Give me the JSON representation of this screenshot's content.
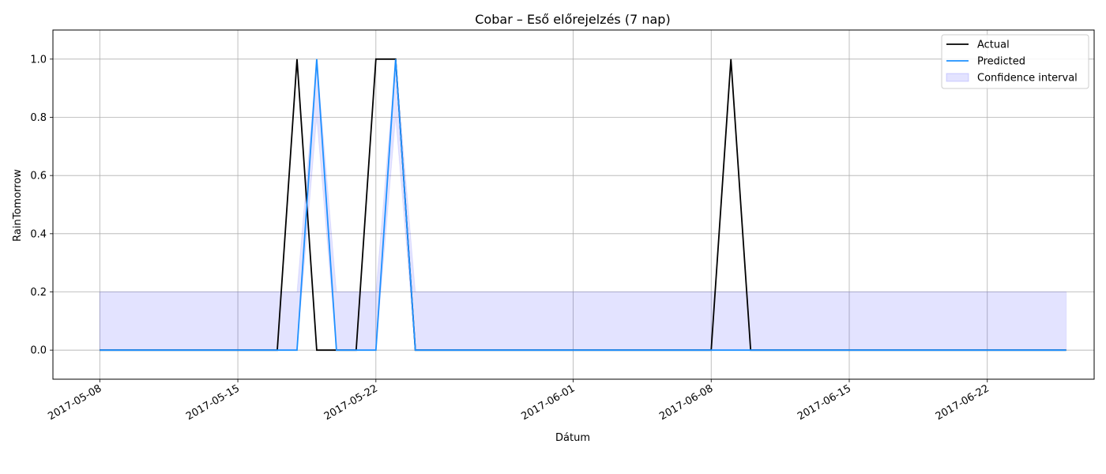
{
  "chart_data": {
    "type": "line",
    "title": "Cobar – Eső előrejelzés (7 nap)",
    "xlabel": "Dátum",
    "ylabel": "RainTomorrow",
    "x_ticks": [
      "2017-05-08",
      "2017-05-15",
      "2017-05-22",
      "2017-06-01",
      "2017-06-08",
      "2017-06-15",
      "2017-06-22"
    ],
    "y_ticks": [
      "0.0",
      "0.2",
      "0.4",
      "0.6",
      "0.8",
      "1.0"
    ],
    "xlim": [
      "2017-05-05T15:00",
      "2017-06-27T10:00"
    ],
    "ylim": [
      -0.1,
      1.1
    ],
    "grid": true,
    "legend_position": "top-right",
    "series": [
      {
        "name": "Actual",
        "color": "#000000",
        "x": [
          "2017-05-08",
          "2017-05-17",
          "2017-05-18",
          "2017-05-19",
          "2017-05-20",
          "2017-05-21",
          "2017-05-22",
          "2017-05-23",
          "2017-05-24",
          "2017-06-08",
          "2017-06-09",
          "2017-06-10",
          "2017-06-26"
        ],
        "y": [
          0,
          0,
          1,
          0,
          0,
          0,
          1,
          1,
          0,
          0,
          1,
          0,
          0
        ]
      },
      {
        "name": "Predicted",
        "color": "#1e90ff",
        "x": [
          "2017-05-08",
          "2017-05-18",
          "2017-05-19",
          "2017-05-20",
          "2017-05-22",
          "2017-05-23",
          "2017-05-24",
          "2017-06-26"
        ],
        "y": [
          0,
          0,
          1,
          0,
          0,
          1,
          0,
          0
        ]
      }
    ],
    "band": {
      "name": "Confidence interval",
      "color": "#0000ff",
      "x": [
        "2017-05-08",
        "2017-05-18",
        "2017-05-19",
        "2017-05-20",
        "2017-05-22",
        "2017-05-23",
        "2017-05-24",
        "2017-06-26"
      ],
      "lower": [
        0,
        0,
        0.8,
        0,
        0,
        0.8,
        0,
        0
      ],
      "upper": [
        0.2,
        0.2,
        1.0,
        0.2,
        0.2,
        1.0,
        0.2,
        0.2
      ]
    }
  }
}
